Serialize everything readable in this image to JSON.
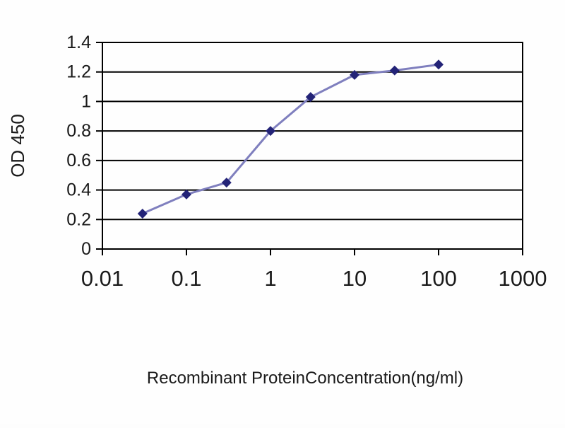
{
  "chart_data": {
    "type": "line",
    "title": "",
    "xlabel": "Recombinant ProteinConcentration(ng/ml)",
    "ylabel": "OD 450",
    "x_scale": "log",
    "xlim": [
      0.01,
      1000
    ],
    "ylim": [
      0,
      1.4
    ],
    "x": [
      0.03,
      0.1,
      0.3,
      1,
      3,
      10,
      30,
      100
    ],
    "values": [
      0.24,
      0.37,
      0.45,
      0.8,
      1.03,
      1.18,
      1.21,
      1.25
    ],
    "x_ticks": [
      0.01,
      0.1,
      1,
      10,
      100,
      1000
    ],
    "x_tick_labels": [
      "0.01",
      "0.1",
      "1",
      "10",
      "100",
      "1000"
    ],
    "y_ticks": [
      0,
      0.2,
      0.4,
      0.6,
      0.8,
      1,
      1.2,
      1.4
    ],
    "y_tick_labels": [
      "0",
      "0.2",
      "0.4",
      "0.6",
      "0.8",
      "1",
      "1.2",
      "1.4"
    ],
    "grid": "horizontal",
    "legend": "none",
    "colors": {
      "line": "#7f7fbe",
      "marker": "#232377",
      "grid": "#000000",
      "border": "#000000",
      "text": "#1a1a1a"
    },
    "marker": "diamond"
  }
}
